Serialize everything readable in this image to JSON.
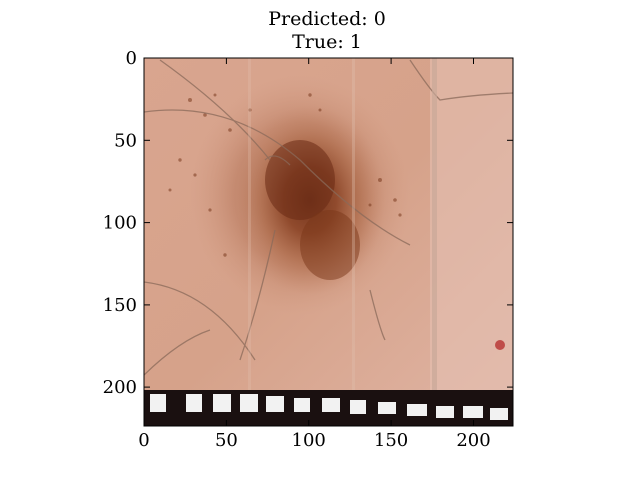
{
  "figure": {
    "title_line1": "Predicted: 0",
    "title_line2": "True: 1"
  },
  "image_axes": {
    "xlim": [
      0,
      224
    ],
    "ylim": [
      224,
      0
    ],
    "x_tick_labels": [
      "0",
      "50",
      "100",
      "150",
      "200"
    ],
    "y_tick_labels": [
      "0",
      "50",
      "100",
      "150",
      "200"
    ],
    "x_ticks": [
      0,
      50,
      100,
      150,
      200
    ],
    "y_ticks": [
      0,
      50,
      100,
      150,
      200
    ]
  },
  "image": {
    "subject": "dermoscopy-skin-lesion",
    "colors": {
      "skin": "#d4a08a",
      "skin_light": "#e2b8a4",
      "lesion_dark": "#7a3a1e",
      "lesion_mid": "#a65a3a",
      "ruler_white": "#f2f2f2",
      "ruler_dark": "#1a1010",
      "hair": "#8a6a5a"
    }
  }
}
